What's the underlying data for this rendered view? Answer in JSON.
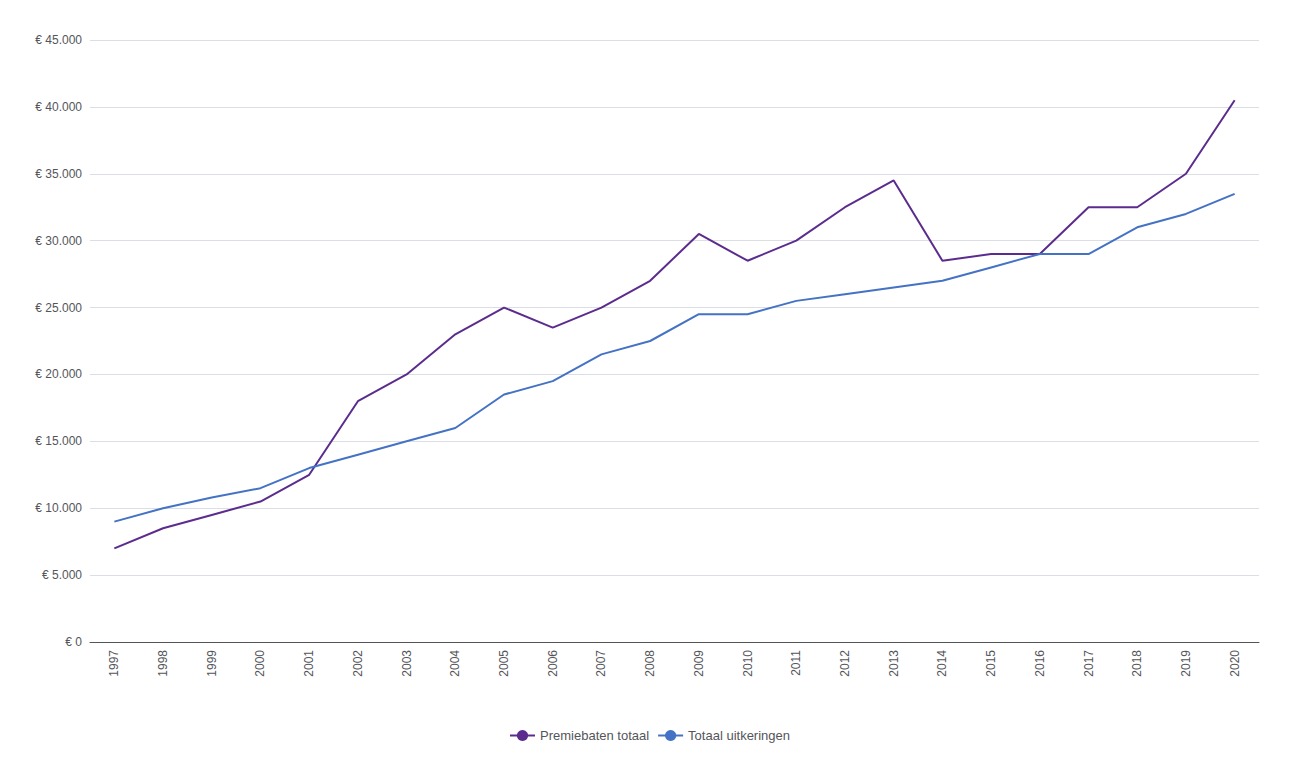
{
  "chart_data": {
    "type": "line",
    "categories": [
      "1997",
      "1998",
      "1999",
      "2000",
      "2001",
      "2002",
      "2003",
      "2004",
      "2005",
      "2006",
      "2007",
      "2008",
      "2009",
      "2010",
      "2011",
      "2012",
      "2013",
      "2014",
      "2015",
      "2016",
      "2017",
      "2018",
      "2019",
      "2020"
    ],
    "series": [
      {
        "name": "Premiebaten totaal",
        "color": "#5B2C8D",
        "values": [
          7000,
          8500,
          9500,
          10500,
          12500,
          18000,
          20000,
          23000,
          25000,
          23500,
          25000,
          27000,
          30500,
          28500,
          30000,
          32500,
          34500,
          28500,
          29000,
          29000,
          32500,
          32500,
          35000,
          40500
        ]
      },
      {
        "name": "Totaal uitkeringen",
        "color": "#4472C4",
        "values": [
          9000,
          10000,
          10800,
          11500,
          13000,
          14000,
          15000,
          16000,
          18500,
          19500,
          21500,
          22500,
          24500,
          24500,
          25500,
          26000,
          26500,
          27000,
          28000,
          29000,
          29000,
          31000,
          32000,
          33500
        ]
      }
    ],
    "ylim": [
      0,
      45000
    ],
    "yticks": [
      {
        "value": 0,
        "label": "€ 0"
      },
      {
        "value": 5000,
        "label": "€ 5.000"
      },
      {
        "value": 10000,
        "label": "€ 10.000"
      },
      {
        "value": 15000,
        "label": "€ 15.000"
      },
      {
        "value": 20000,
        "label": "€ 20.000"
      },
      {
        "value": 25000,
        "label": "€ 25.000"
      },
      {
        "value": 30000,
        "label": "€ 30.000"
      },
      {
        "value": 35000,
        "label": "€ 35.000"
      },
      {
        "value": 40000,
        "label": "€ 40.000"
      },
      {
        "value": 45000,
        "label": "€ 45.000"
      }
    ],
    "grid": true,
    "legend": "bottom"
  }
}
